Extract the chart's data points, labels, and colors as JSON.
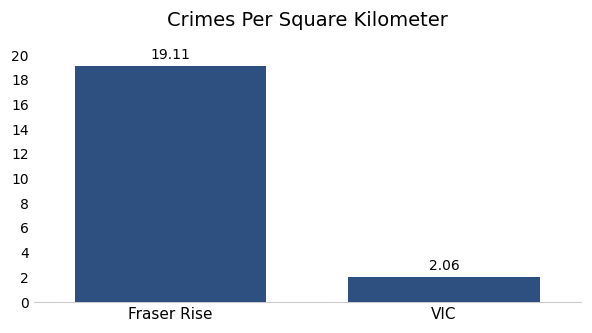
{
  "categories": [
    "Fraser Rise",
    "VIC"
  ],
  "values": [
    19.11,
    2.06
  ],
  "bar_colors": [
    "#2e5080",
    "#2e5080"
  ],
  "title": "Crimes Per Square Kilometer",
  "ylim": [
    0,
    21
  ],
  "yticks": [
    0,
    2,
    4,
    6,
    8,
    10,
    12,
    14,
    16,
    18,
    20
  ],
  "bar_labels": [
    "19.11",
    "2.06"
  ],
  "background_color": "#ffffff",
  "title_fontsize": 14,
  "label_fontsize": 11,
  "bar_label_fontsize": 10,
  "bar_width": 0.35,
  "figsize": [
    5.92,
    3.33
  ],
  "dpi": 100
}
